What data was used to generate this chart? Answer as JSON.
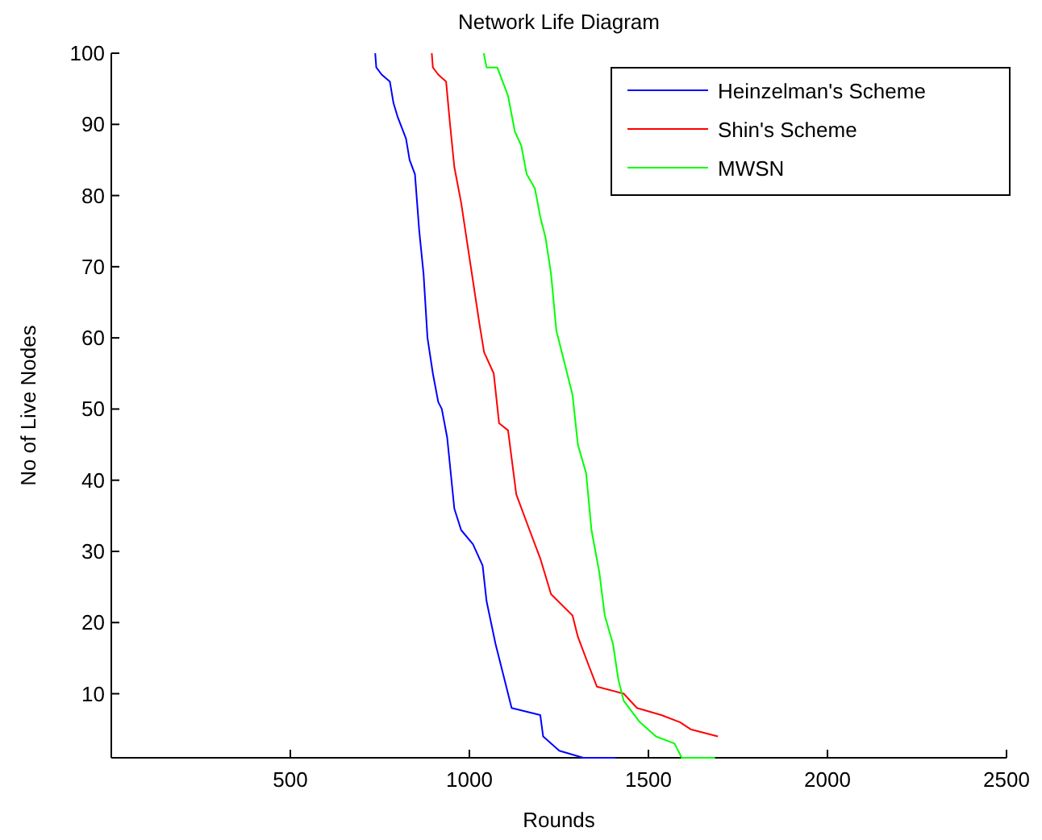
{
  "chart_data": {
    "type": "line",
    "title": "Network Life Diagram",
    "xlabel": "Rounds",
    "ylabel": "No of Live Nodes",
    "xlim": [
      0,
      2500
    ],
    "ylim": [
      1,
      100
    ],
    "xticks": [
      500,
      1000,
      1500,
      2000,
      2500
    ],
    "yticks": [
      10,
      20,
      30,
      40,
      50,
      60,
      70,
      80,
      90,
      100
    ],
    "legend": "top right",
    "grid": false,
    "series": [
      {
        "name": "Heinzelman's Scheme",
        "color": "#0000ff",
        "x": [
          737,
          740,
          755,
          778,
          788,
          800,
          823,
          833,
          848,
          860,
          872,
          883,
          898,
          913,
          923,
          938,
          958,
          977,
          1010,
          1037,
          1048,
          1073,
          1093,
          1118,
          1198,
          1206,
          1251,
          1318,
          1408
        ],
        "values": [
          100,
          98,
          97,
          96,
          93,
          91,
          88,
          85,
          83,
          75,
          69,
          60,
          55,
          51,
          50,
          46,
          36,
          33,
          31,
          28,
          23,
          17,
          13,
          8,
          7,
          4,
          2,
          1,
          1
        ]
      },
      {
        "name": "Shin's Scheme",
        "color": "#ff0000",
        "x": [
          895,
          898,
          913,
          935,
          946,
          958,
          977,
          995,
          1010,
          1028,
          1041,
          1068,
          1083,
          1108,
          1131,
          1168,
          1198,
          1228,
          1288,
          1303,
          1333,
          1356,
          1431,
          1468,
          1536,
          1588,
          1618,
          1694
        ],
        "values": [
          100,
          98,
          97,
          96,
          90,
          84,
          79,
          73,
          68,
          62,
          58,
          55,
          48,
          47,
          38,
          33,
          29,
          24,
          21,
          18,
          14,
          11,
          10,
          8,
          7,
          6,
          5,
          4
        ]
      },
      {
        "name": "MWSN",
        "color": "#00ff00",
        "x": [
          1040,
          1048,
          1078,
          1093,
          1108,
          1127,
          1145,
          1160,
          1183,
          1198,
          1213,
          1228,
          1243,
          1258,
          1273,
          1288,
          1303,
          1326,
          1341,
          1363,
          1378,
          1401,
          1416,
          1431,
          1476,
          1521,
          1573,
          1593,
          1686
        ],
        "values": [
          100,
          98,
          98,
          96,
          94,
          89,
          87,
          83,
          81,
          77,
          74,
          69,
          61,
          58,
          55,
          52,
          45,
          41,
          33,
          27,
          21,
          17,
          12,
          9,
          6,
          4,
          3,
          1,
          1
        ]
      }
    ]
  }
}
